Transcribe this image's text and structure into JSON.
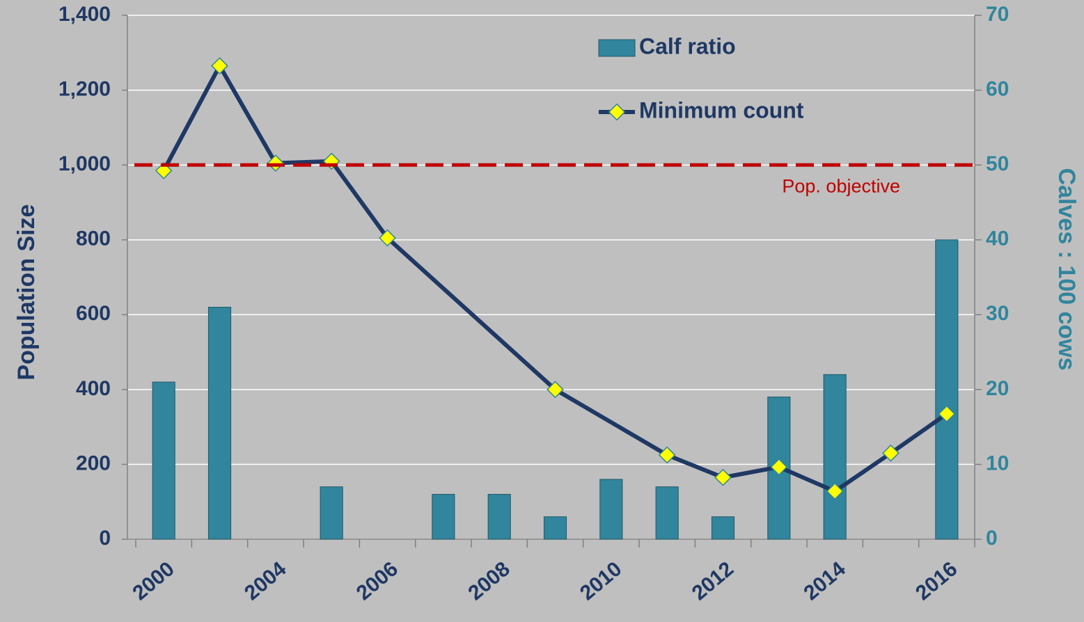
{
  "chart_data": {
    "type": "bar_line",
    "categories": [
      "2000",
      null,
      "2004",
      null,
      "2006",
      null,
      "2008",
      null,
      "2010",
      null,
      "2012",
      null,
      "2014",
      null,
      "2016"
    ],
    "ylabel": "Population Size",
    "y2label": "Calves : 100 cows",
    "ylim": [
      0,
      1400
    ],
    "yticks": [
      0,
      200,
      400,
      600,
      800,
      {
        "value": 1000,
        "label": "1,000"
      },
      {
        "value": 1200,
        "label": "1,200"
      },
      {
        "value": 1400,
        "label": "1,400"
      }
    ],
    "y2lim": [
      0,
      70
    ],
    "y2ticks": [
      0,
      10,
      20,
      30,
      40,
      50,
      60,
      70
    ],
    "grid": true,
    "series": [
      {
        "name": "Calf ratio",
        "type": "bar",
        "axis": "y2",
        "color": "#31859c",
        "values": [
          21,
          31,
          null,
          7,
          null,
          6,
          6,
          3,
          8,
          7,
          3,
          19,
          22,
          null,
          40
        ]
      },
      {
        "name": "Minimum count",
        "type": "line",
        "color": "#1f3864",
        "marker_color": "#ffff00",
        "values": [
          985,
          1265,
          1005,
          1010,
          805,
          null,
          null,
          400,
          null,
          225,
          165,
          193,
          128,
          230,
          335
        ]
      }
    ],
    "reference_line": {
      "label": "Pop. objective",
      "value": 1000,
      "color": "#c00000"
    }
  }
}
